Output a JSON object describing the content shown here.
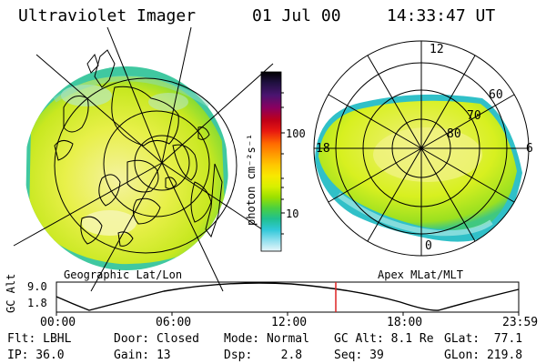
{
  "header": {
    "title": "Ultraviolet Imager",
    "date": "01 Jul 00",
    "time": "14:33:47 UT"
  },
  "left_panel": {
    "caption": "Geographic Lat/Lon"
  },
  "right_panel": {
    "caption": "Apex MLat/MLT",
    "mlt_labels": {
      "top": "12",
      "left": "18",
      "right": "6",
      "bottom": "0"
    },
    "mlat_labels": [
      "60",
      "70",
      "80"
    ]
  },
  "colorbar": {
    "unit_label": "photon cm⁻²s⁻¹",
    "ticks": [
      "100",
      "10"
    ],
    "colors": [
      "#000000",
      "#201040",
      "#4a1470",
      "#8a0060",
      "#c00018",
      "#e81810",
      "#ff6a00",
      "#ff9a00",
      "#ffc800",
      "#f8e800",
      "#d8f000",
      "#9ae000",
      "#4ad040",
      "#20c090",
      "#30c8d8",
      "#90e0ee",
      "#e8f6fa"
    ]
  },
  "timeline": {
    "ylabel": "GC Alt",
    "y_ticks": [
      "9.0",
      "1.8"
    ],
    "x_ticks": [
      "00:00",
      "06:00",
      "12:00",
      "18:00",
      "23:59"
    ],
    "marker_color": "#dd2222"
  },
  "status": {
    "row1": {
      "flt": "Flt: LBHL",
      "door": "Door: Closed",
      "mode": "Mode: Normal",
      "gcalt": "GC Alt: 8.1 Re",
      "glat": "GLat:  77.1"
    },
    "row2": {
      "ip": "IP: 36.0",
      "gain": "Gain: 13",
      "dsp": "Dsp:    2.8",
      "seq": "Seq: 39",
      "glon": "GLon: 219.8"
    }
  }
}
